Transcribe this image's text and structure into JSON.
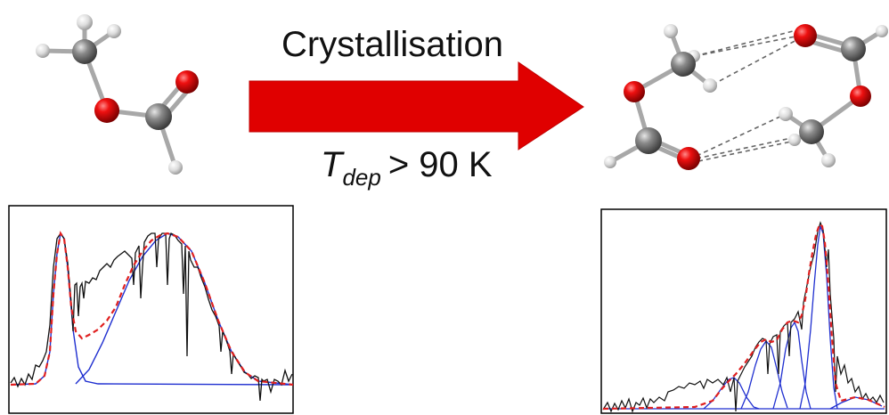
{
  "process_label": "Crystallisation",
  "condition": {
    "symbol": "T",
    "subscript": "dep",
    "relation": "> 90 K"
  },
  "colors": {
    "arrow": "#e00000",
    "oxygen": "#dd0000",
    "carbon": "#7a7a7a",
    "hydrogen": "#dcdcdc",
    "spectrum": "#111111",
    "fit_total": "#e02020",
    "fit_component": "#1f2fd0",
    "hbond": "#666666"
  },
  "spectra": [
    {
      "name": "amorphous-spectrum",
      "components": 2
    },
    {
      "name": "crystalline-spectrum",
      "components": 5
    }
  ]
}
